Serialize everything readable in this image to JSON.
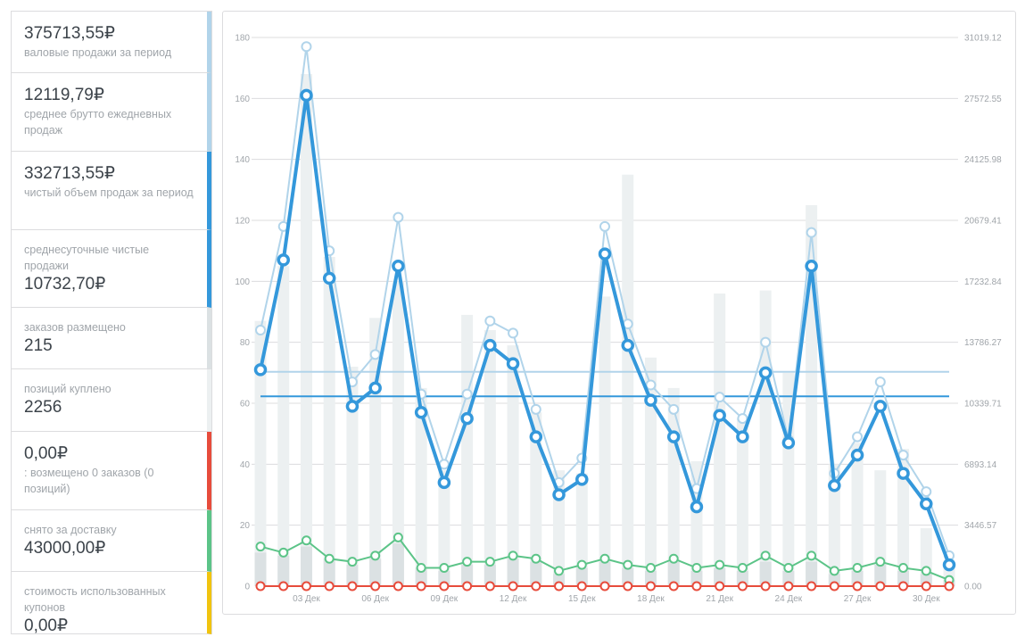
{
  "sidebar": {
    "items": [
      {
        "value": "375713,55₽",
        "label": "валовые продажи за период",
        "color": "#b1d4ea",
        "order": "value-first"
      },
      {
        "value": "12119,79₽",
        "label": "среднее брутто ежедневных продаж",
        "color": "#b1d4ea",
        "order": "value-first"
      },
      {
        "value": "332713,55₽",
        "label": "чистый объем продаж за период",
        "color": "#3498db",
        "order": "value-first"
      },
      {
        "value": "10732,70₽",
        "label": "среднесуточные чистые продажи",
        "color": "#3498db",
        "order": "label-first"
      },
      {
        "value": "215",
        "label": "заказов размещено",
        "color": "#dbe1e3",
        "order": "label-first"
      },
      {
        "value": "2256",
        "label": "позиций куплено",
        "color": "#ecf0f1",
        "order": "label-first"
      },
      {
        "value": "0,00₽",
        "label": ": возмещено 0 заказов (0 позиций)",
        "color": "#e74c3c",
        "order": "value-first"
      },
      {
        "value": "43000,00₽",
        "label": "снято за доставку",
        "color": "#5cc488",
        "order": "label-first"
      },
      {
        "value": "0,00₽",
        "label": "стоимость использованных купонов",
        "color": "#f1c40f",
        "order": "label-first"
      }
    ]
  },
  "chart_data": {
    "type": "line",
    "days": [
      1,
      2,
      3,
      4,
      5,
      6,
      7,
      8,
      9,
      10,
      11,
      12,
      13,
      14,
      15,
      16,
      17,
      18,
      19,
      20,
      21,
      22,
      23,
      24,
      25,
      26,
      27,
      28,
      29,
      30,
      31
    ],
    "x_tick_labels": [
      {
        "day": 3,
        "label": "03 Дек"
      },
      {
        "day": 6,
        "label": "06 Дек"
      },
      {
        "day": 9,
        "label": "09 Дек"
      },
      {
        "day": 12,
        "label": "12 Дек"
      },
      {
        "day": 15,
        "label": "15 Дек"
      },
      {
        "day": 18,
        "label": "18 Дек"
      },
      {
        "day": 21,
        "label": "21 Дек"
      },
      {
        "day": 24,
        "label": "24 Дек"
      },
      {
        "day": 27,
        "label": "27 Дек"
      },
      {
        "day": 30,
        "label": "30 Дек"
      }
    ],
    "left_axis": {
      "ylim": [
        0,
        180
      ],
      "ticks": [
        "0",
        "20",
        "40",
        "60",
        "80",
        "100",
        "120",
        "140",
        "160",
        "180"
      ]
    },
    "right_axis": {
      "ylim": [
        0,
        31019.12
      ],
      "ticks": [
        "0.00",
        "3446.57",
        "6893.14",
        "10339.71",
        "13786.27",
        "17232.84",
        "20679.41",
        "24125.98",
        "27572.55",
        "31019.12"
      ]
    },
    "grid": true,
    "series": [
      {
        "name": "позиций куплено",
        "type": "bar",
        "axis": "left",
        "color": "#ecf0f1",
        "values": [
          87,
          105,
          168,
          108,
          72,
          88,
          100,
          65,
          38,
          89,
          84,
          79,
          57,
          38,
          37,
          95,
          135,
          75,
          65,
          41,
          96,
          55,
          97,
          70,
          125,
          40,
          47,
          38,
          45,
          19,
          8
        ]
      },
      {
        "name": "заказов размещено",
        "type": "bar",
        "axis": "left",
        "color": "#dbe1e3",
        "values": [
          11,
          10,
          13,
          9,
          7,
          9,
          14,
          6,
          5,
          7,
          7,
          9,
          8,
          4,
          6,
          8,
          6,
          5,
          8,
          5,
          6,
          5,
          8,
          5,
          8,
          4,
          5,
          7,
          5,
          4,
          2
        ]
      },
      {
        "name": "снято за доставку",
        "type": "line",
        "axis": "right",
        "color": "#5cc488",
        "values": [
          2240,
          1896,
          2585,
          1551,
          1379,
          1723,
          2757,
          1034,
          1034,
          1379,
          1379,
          1723,
          1551,
          862,
          1206,
          1551,
          1206,
          1034,
          1551,
          1034,
          1206,
          1034,
          1723,
          1034,
          1723,
          862,
          1034,
          1379,
          1034,
          862,
          345
        ]
      },
      {
        "name": "возмещено",
        "type": "line",
        "axis": "right",
        "color": "#e74c3c",
        "values": [
          0,
          0,
          0,
          0,
          0,
          0,
          0,
          0,
          0,
          0,
          0,
          0,
          0,
          0,
          0,
          0,
          0,
          0,
          0,
          0,
          0,
          0,
          0,
          0,
          0,
          0,
          0,
          0,
          0,
          0,
          0
        ]
      },
      {
        "name": "валовые продажи",
        "type": "line",
        "axis": "right",
        "color": "#b1d4ea",
        "values": [
          14476,
          20335,
          30502,
          18956,
          11546,
          13097,
          20852,
          10857,
          6893,
          10857,
          14993,
          14303,
          9995,
          5859,
          7238,
          20335,
          14820,
          11374,
          9995,
          5515,
          10684,
          9478,
          13786,
          8272,
          19990,
          6376,
          8444,
          11546,
          7410,
          5342,
          1723
        ]
      },
      {
        "name": "чистый объем продаж",
        "type": "line",
        "axis": "right",
        "color": "#3498db",
        "values": [
          12235,
          18439,
          27745,
          17405,
          10167,
          11201,
          18095,
          9823,
          5859,
          9478,
          13614,
          12580,
          8444,
          5170,
          6032,
          18784,
          13614,
          10512,
          8444,
          4481,
          9650,
          8444,
          12063,
          8100,
          18095,
          5687,
          7410,
          10167,
          6376,
          4653,
          1206
        ]
      }
    ],
    "averages": [
      {
        "name": "среднее брутто",
        "axis": "right",
        "value": 12119.79,
        "color": "#b1d4ea"
      },
      {
        "name": "среднее нетто",
        "axis": "right",
        "value": 10732.7,
        "color": "#3498db"
      }
    ]
  }
}
